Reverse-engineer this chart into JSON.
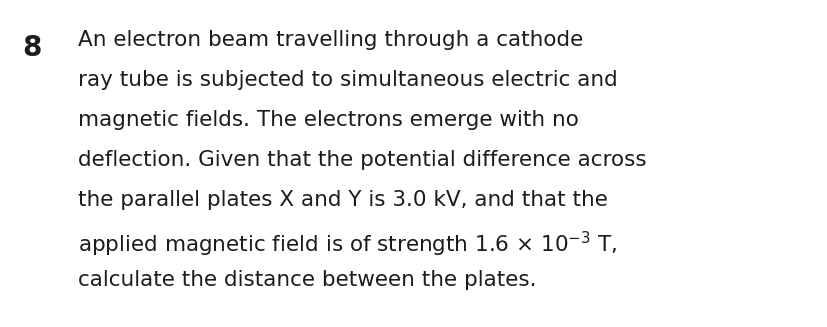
{
  "background_color": "#ffffff",
  "number": "8",
  "number_fontsize": 20,
  "number_fontweight": "bold",
  "text_fontsize": 15.5,
  "lines": [
    "An electron beam travelling through a cathode",
    "ray tube is subjected to simultaneous electric and",
    "magnetic fields. The electrons emerge with no",
    "deflection. Given that the potential difference across",
    "the parallel plates X and Y is 3.0 kV, and that the",
    "applied magnetic field is of strength 1.6 × 10$^{-3}$ T,",
    "calculate the distance between the plates."
  ],
  "font_color": "#1c1c1c",
  "font_family": "DejaVu Sans",
  "fig_width": 8.28,
  "fig_height": 3.27,
  "dpi": 100
}
